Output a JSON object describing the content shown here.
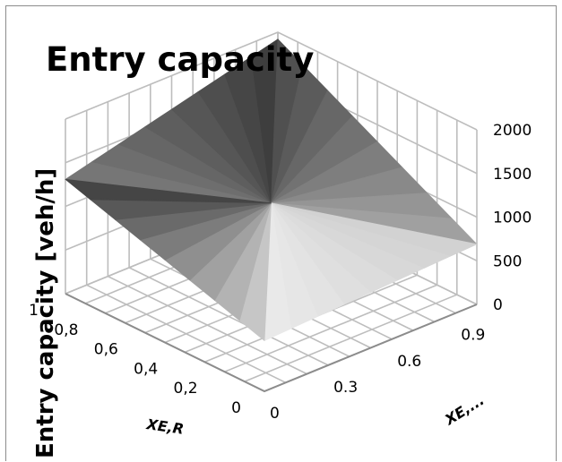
{
  "chart_data": {
    "type": "surface",
    "title": "Entry capacity",
    "zlabel": "Entry capacity [veh/h]",
    "xlabel": "XE,R",
    "ylabel": "XE,...",
    "x_ticks": [
      "0",
      "0,2",
      "0,4",
      "0,6",
      "0,8",
      "1"
    ],
    "y_ticks": [
      "0",
      "0.3",
      "0.6",
      "0.9"
    ],
    "z_ticks": [
      "0",
      "500",
      "1000",
      "1500",
      "2000"
    ],
    "zlim": [
      0,
      2000
    ],
    "grid": true,
    "colors": {
      "frame": "#8c8c8c",
      "grid": "#bdbdbd",
      "dark": "#2e2e2e",
      "mid": "#6e6e6e",
      "light": "#e2e2e2"
    },
    "corners": [
      {
        "x": 1,
        "y": 0,
        "z": 1310
      },
      {
        "x": 1,
        "y": 1,
        "z": 1920
      },
      {
        "x": 0,
        "y": 1,
        "z": 690
      },
      {
        "x": 0,
        "y": 0,
        "z": 580
      },
      {
        "x": 0.5,
        "y": 0.5,
        "z": 1100
      }
    ],
    "surface_regions": [
      {
        "name": "back-left",
        "z": [
          1310,
          1920,
          1100
        ],
        "shade": "#6e6e6e"
      },
      {
        "name": "back-right",
        "z": [
          1920,
          690,
          1100
        ],
        "shade": "#9a9a9a"
      },
      {
        "name": "front-left",
        "z": [
          580,
          1310,
          1100
        ],
        "shade": "#4a4a4a"
      },
      {
        "name": "front-right",
        "z": [
          690,
          580,
          1100
        ],
        "shade": "#d4d4d4"
      }
    ]
  }
}
